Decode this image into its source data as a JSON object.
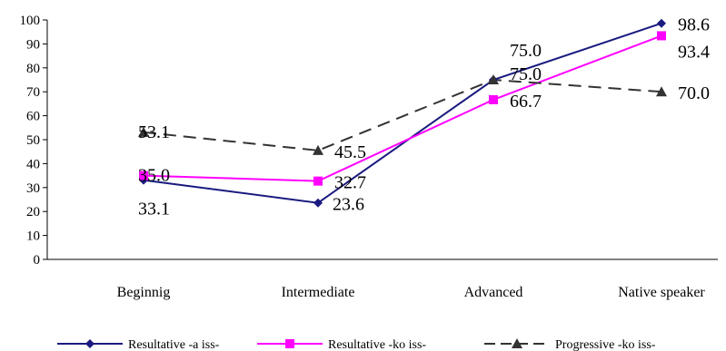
{
  "chart_data": {
    "type": "line",
    "categories": [
      "Beginnig",
      "Intermediate",
      "Advanced",
      "Native speaker"
    ],
    "series": [
      {
        "name": "Resultative -a iss-",
        "values": [
          33.1,
          23.6,
          75.0,
          98.6
        ],
        "labels": [
          "33.1",
          "23.6",
          "75.0",
          "98.6"
        ],
        "color": "#1a1a80",
        "marker": "diamond",
        "dash": "solid"
      },
      {
        "name": "Resultative -ko iss-",
        "values": [
          35.0,
          32.7,
          66.7,
          93.4
        ],
        "labels": [
          "35.0",
          "32.7",
          "66.7",
          "93.4"
        ],
        "color": "#ff00ff",
        "marker": "square",
        "dash": "solid"
      },
      {
        "name": "Progressive -ko iss-",
        "values": [
          53.1,
          45.5,
          75.0,
          70.0
        ],
        "labels": [
          "53.1",
          "45.5",
          "75.0",
          "70.0"
        ],
        "color": "#333333",
        "marker": "triangle",
        "dash": "dashed"
      }
    ],
    "yticks": [
      "0",
      "10",
      "20",
      "30",
      "40",
      "50",
      "60",
      "70",
      "80",
      "90",
      "100"
    ],
    "ylim": [
      0,
      100
    ],
    "grid": false,
    "legend": "bottom"
  }
}
